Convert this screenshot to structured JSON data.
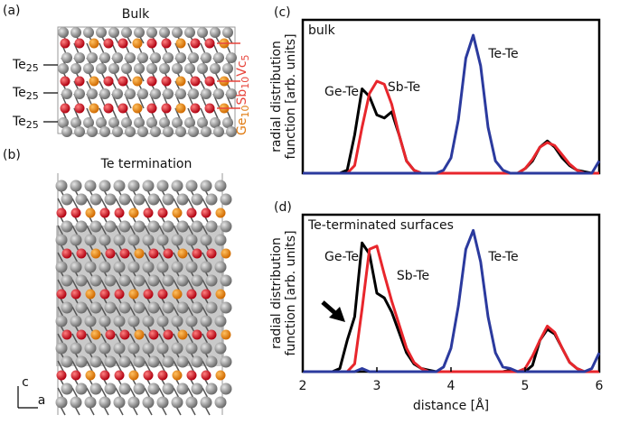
{
  "structure_a": {
    "panel_label": "(a)",
    "title": "Bulk",
    "layer_labels": [
      {
        "element": "Te",
        "sub": "25"
      },
      {
        "element": "Te",
        "sub": "25"
      },
      {
        "element": "Te",
        "sub": "25"
      }
    ],
    "composition": [
      "Ge",
      "10",
      "Sb",
      "10",
      "Vc",
      "5"
    ]
  },
  "structure_b": {
    "panel_label": "(b)",
    "title": "Te termination",
    "axis_labels": [
      "c",
      "a"
    ]
  },
  "chart_data": [
    {
      "type": "line",
      "panel_label": "(c)",
      "title": "bulk",
      "ylabel": [
        "radial distribution",
        "function [arb. units]"
      ],
      "x": [
        2.0,
        2.1,
        2.2,
        2.3,
        2.4,
        2.5,
        2.6,
        2.7,
        2.8,
        2.9,
        3.0,
        3.1,
        3.2,
        3.3,
        3.4,
        3.5,
        3.6,
        3.7,
        3.8,
        3.9,
        4.0,
        4.1,
        4.2,
        4.3,
        4.4,
        4.5,
        4.6,
        4.7,
        4.8,
        4.9,
        5.0,
        5.1,
        5.2,
        5.3,
        5.4,
        5.5,
        5.6,
        5.7,
        5.8,
        5.9,
        6.0
      ],
      "xlim": [
        2,
        6
      ],
      "ylim": [
        0,
        1
      ],
      "series": [
        {
          "name": "Ge-Te",
          "color": "#000000",
          "values": [
            0,
            0,
            0,
            0,
            0,
            0,
            0.02,
            0.25,
            0.55,
            0.5,
            0.38,
            0.36,
            0.4,
            0.25,
            0.08,
            0.02,
            0,
            0,
            0,
            0,
            0,
            0,
            0,
            0,
            0,
            0,
            0,
            0,
            0,
            0,
            0.03,
            0.08,
            0.17,
            0.21,
            0.17,
            0.1,
            0.05,
            0.02,
            0.01,
            0,
            0
          ]
        },
        {
          "name": "Sb-Te",
          "color": "#e8262c",
          "values": [
            0,
            0,
            0,
            0,
            0,
            0,
            0,
            0.05,
            0.3,
            0.52,
            0.6,
            0.58,
            0.45,
            0.25,
            0.08,
            0.02,
            0,
            0,
            0,
            0,
            0,
            0,
            0,
            0,
            0,
            0,
            0,
            0,
            0,
            0,
            0.03,
            0.09,
            0.17,
            0.2,
            0.18,
            0.12,
            0.06,
            0.02,
            0,
            0,
            0
          ]
        },
        {
          "name": "Te-Te",
          "color": "#2b3a9e",
          "values": [
            0,
            0,
            0,
            0,
            0,
            0,
            0,
            0,
            0,
            0,
            0,
            0,
            0,
            0,
            0,
            0,
            0,
            0,
            0,
            0.02,
            0.1,
            0.35,
            0.75,
            0.9,
            0.7,
            0.3,
            0.08,
            0.02,
            0,
            0,
            0,
            0,
            0,
            0,
            0,
            0,
            0,
            0,
            0,
            0,
            0.08
          ]
        }
      ]
    },
    {
      "type": "line",
      "panel_label": "(d)",
      "title": "Te-terminated surfaces",
      "ylabel": [
        "radial distribution",
        "function [arb. units]"
      ],
      "xlabel": "distance [Å]",
      "x": [
        2.0,
        2.1,
        2.2,
        2.3,
        2.4,
        2.5,
        2.6,
        2.7,
        2.8,
        2.9,
        3.0,
        3.1,
        3.2,
        3.3,
        3.4,
        3.5,
        3.6,
        3.7,
        3.8,
        3.9,
        4.0,
        4.1,
        4.2,
        4.3,
        4.4,
        4.5,
        4.6,
        4.7,
        4.8,
        4.9,
        5.0,
        5.1,
        5.2,
        5.3,
        5.4,
        5.5,
        5.6,
        5.7,
        5.8,
        5.9,
        6.0
      ],
      "xlim": [
        2,
        6
      ],
      "ylim": [
        0,
        1
      ],
      "xticks": [
        2,
        3,
        4,
        5,
        6
      ],
      "series": [
        {
          "name": "Ge-Te",
          "color": "#000000",
          "values": [
            0,
            0,
            0,
            0,
            0,
            0.02,
            0.2,
            0.35,
            0.82,
            0.75,
            0.5,
            0.47,
            0.38,
            0.25,
            0.12,
            0.05,
            0.02,
            0.01,
            0,
            0,
            0,
            0,
            0,
            0,
            0,
            0,
            0,
            0,
            0.01,
            0,
            0,
            0.04,
            0.2,
            0.27,
            0.24,
            0.15,
            0.06,
            0.02,
            0,
            0,
            0
          ]
        },
        {
          "name": "Sb-Te",
          "color": "#e8262c",
          "values": [
            0,
            0,
            0,
            0,
            0,
            0,
            0,
            0.05,
            0.4,
            0.78,
            0.8,
            0.62,
            0.45,
            0.3,
            0.15,
            0.06,
            0.02,
            0,
            0,
            0,
            0,
            0,
            0,
            0,
            0,
            0,
            0,
            0,
            0,
            0,
            0.02,
            0.1,
            0.2,
            0.29,
            0.25,
            0.15,
            0.06,
            0.02,
            0,
            0,
            0
          ]
        },
        {
          "name": "Te-Te",
          "color": "#2b3a9e",
          "values": [
            0,
            0,
            0,
            0,
            0,
            0,
            0,
            0,
            0.02,
            0,
            0,
            0,
            0,
            0,
            0,
            0,
            0,
            0,
            0,
            0.03,
            0.15,
            0.42,
            0.78,
            0.9,
            0.7,
            0.35,
            0.12,
            0.03,
            0.02,
            0,
            0,
            0,
            0,
            0,
            0,
            0,
            0,
            0,
            0,
            0.02,
            0.12
          ]
        }
      ]
    }
  ]
}
